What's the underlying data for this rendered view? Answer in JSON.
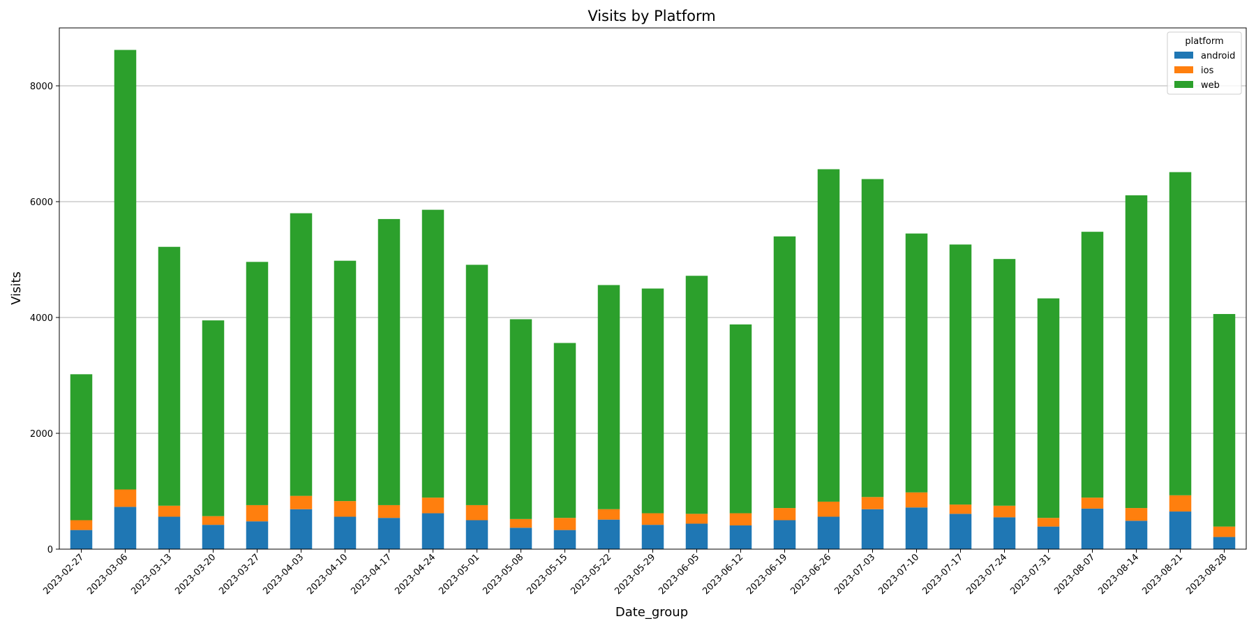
{
  "chart_data": {
    "type": "bar",
    "stacked": true,
    "title": "Visits by Platform",
    "xlabel": "Date_group",
    "ylabel": "Visits",
    "ylim": [
      0,
      9000
    ],
    "yticks": [
      0,
      2000,
      4000,
      6000,
      8000
    ],
    "grid": "horizontal",
    "legend": {
      "title": "platform",
      "placement": "top-right"
    },
    "categories": [
      "2023-02-27",
      "2023-03-06",
      "2023-03-13",
      "2023-03-20",
      "2023-03-27",
      "2023-04-03",
      "2023-04-10",
      "2023-04-17",
      "2023-04-24",
      "2023-05-01",
      "2023-05-08",
      "2023-05-15",
      "2023-05-22",
      "2023-05-29",
      "2023-06-05",
      "2023-06-12",
      "2023-06-19",
      "2023-06-26",
      "2023-07-03",
      "2023-07-10",
      "2023-07-17",
      "2023-07-24",
      "2023-07-31",
      "2023-08-07",
      "2023-08-14",
      "2023-08-21",
      "2023-08-28"
    ],
    "series": [
      {
        "name": "android",
        "color": "#1f77b4",
        "values": [
          330,
          730,
          560,
          420,
          480,
          690,
          560,
          540,
          620,
          500,
          370,
          330,
          510,
          420,
          440,
          410,
          500,
          560,
          690,
          720,
          610,
          550,
          390,
          700,
          490,
          650,
          210
        ]
      },
      {
        "name": "ios",
        "color": "#ff7f0e",
        "values": [
          170,
          300,
          190,
          150,
          280,
          230,
          270,
          220,
          270,
          260,
          150,
          210,
          180,
          200,
          170,
          210,
          210,
          260,
          210,
          260,
          160,
          200,
          150,
          190,
          220,
          280,
          180
        ]
      },
      {
        "name": "web",
        "color": "#2ca02c",
        "values": [
          2520,
          7590,
          4470,
          3380,
          4200,
          4880,
          4150,
          4940,
          4970,
          4150,
          3450,
          3020,
          3870,
          3880,
          4110,
          3260,
          4690,
          5740,
          5490,
          4470,
          4490,
          4260,
          3790,
          4590,
          5400,
          5580,
          3670
        ]
      }
    ]
  }
}
